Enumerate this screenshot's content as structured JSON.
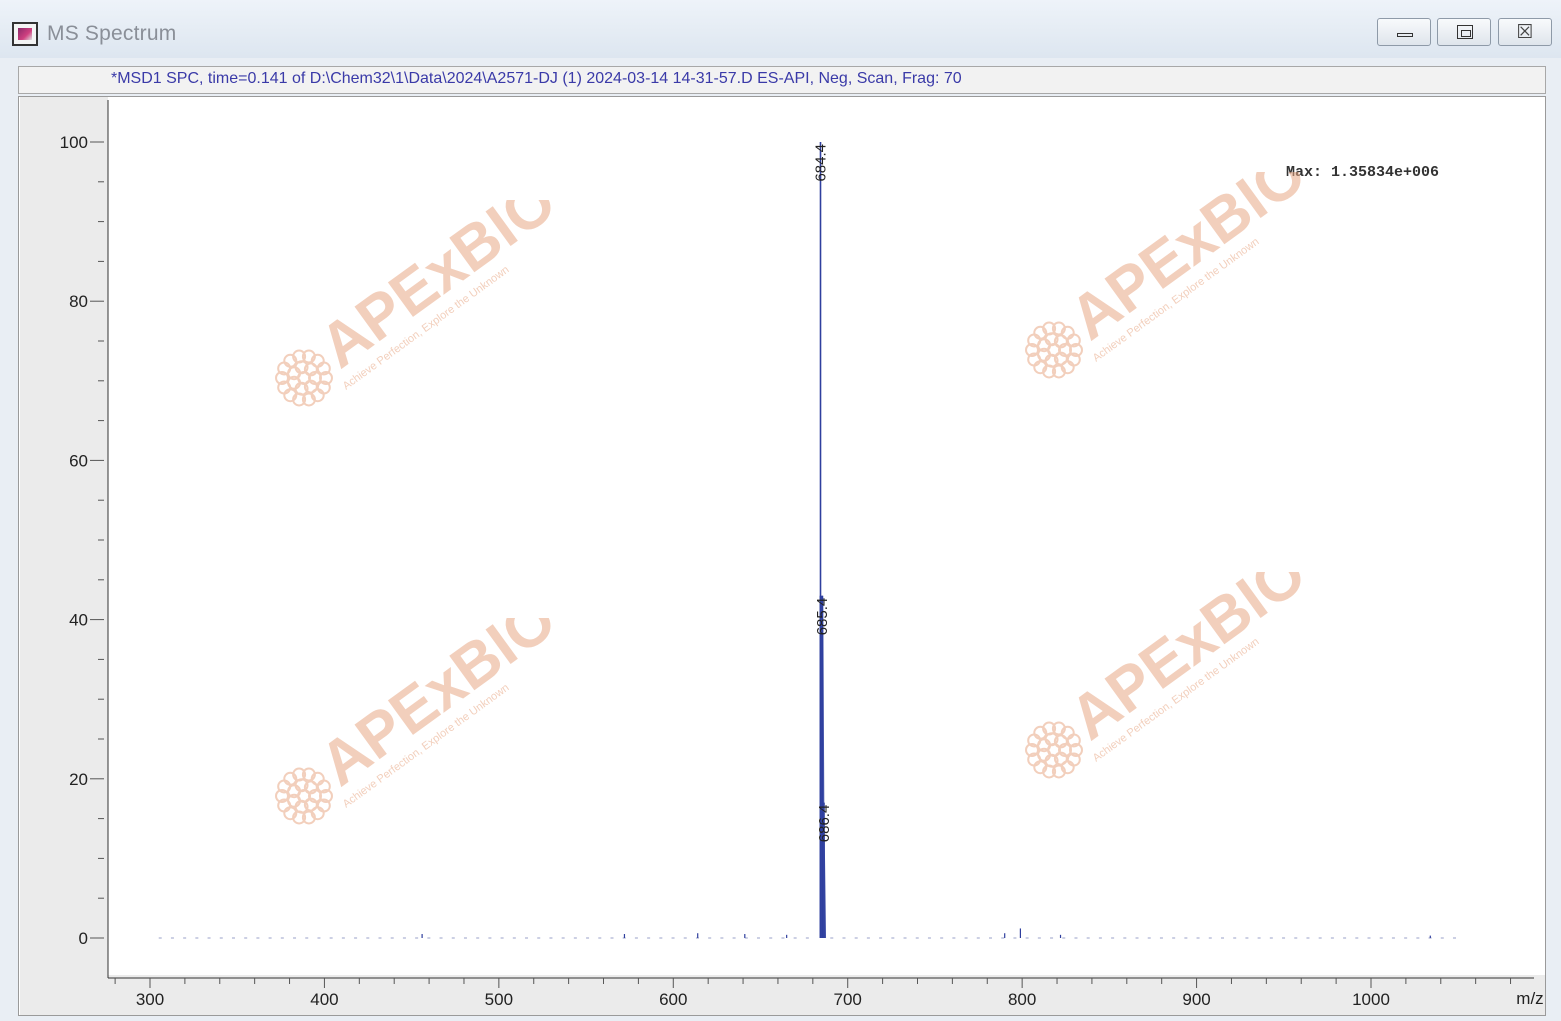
{
  "window": {
    "title": "MS Spectrum",
    "icon": "spectrum-app-icon",
    "controls": {
      "minimize": "minimize-icon",
      "maximize": "maximize-icon",
      "close": "close-icon",
      "close_glyph": "☒"
    }
  },
  "header": {
    "text": "*MSD1 SPC, time=0.141 of D:\\Chem32\\1\\Data\\2024\\A2571-DJ (1) 2024-03-14 14-31-57.D   ES-API, Neg, Scan, Frag: 70"
  },
  "max_label": "Max: 1.35834e+006",
  "watermark": {
    "brand": "APExBIO",
    "tagline": "Achieve Perfection, Explore the Unknown"
  },
  "colors": {
    "trace": "#2f3f9e",
    "header_text": "#3a3aa8",
    "watermark": "#e8a886"
  },
  "chart_data": {
    "type": "line",
    "xlabel": "m/z",
    "ylabel": "",
    "xlim": [
      276,
      1535
    ],
    "ylim": [
      -5,
      105
    ],
    "x_ticks": [
      300,
      400,
      500,
      600,
      700,
      800,
      900,
      1000
    ],
    "y_ticks": [
      0,
      20,
      40,
      60,
      80,
      100
    ],
    "grid": false,
    "series": [
      {
        "peaks": [
          {
            "mz": 684.4,
            "abundance": 100,
            "label": "684.4"
          },
          {
            "mz": 685.4,
            "abundance": 43,
            "label": "685.4"
          },
          {
            "mz": 686.4,
            "abundance": 17,
            "label": "686.4"
          },
          {
            "mz": 456,
            "abundance": 0.5
          },
          {
            "mz": 572,
            "abundance": 0.5
          },
          {
            "mz": 614,
            "abundance": 0.6
          },
          {
            "mz": 641,
            "abundance": 0.5
          },
          {
            "mz": 665,
            "abundance": 0.4
          },
          {
            "mz": 790,
            "abundance": 0.6
          },
          {
            "mz": 799,
            "abundance": 1.2
          },
          {
            "mz": 822,
            "abundance": 0.4
          },
          {
            "mz": 1034,
            "abundance": 0.3
          }
        ]
      }
    ]
  }
}
